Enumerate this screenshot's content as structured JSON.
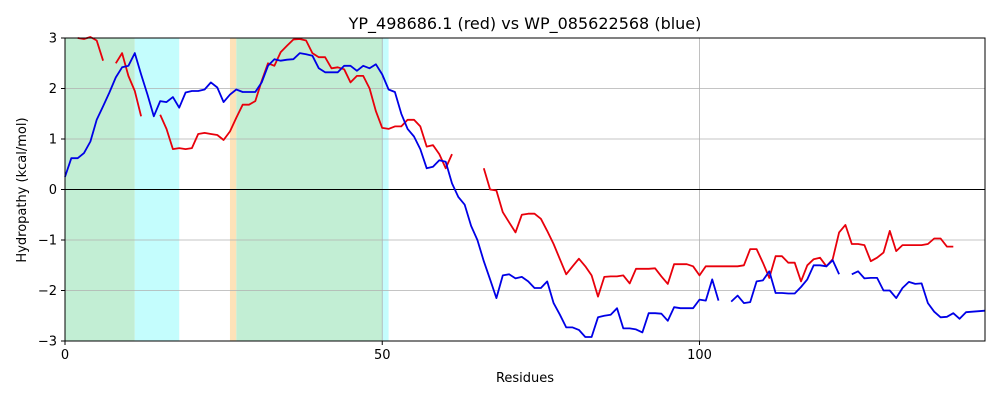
{
  "chart_data": {
    "type": "line",
    "title": "YP_498686.1 (red) vs WP_085622568 (blue)",
    "xlabel": "Residues",
    "ylabel": "Hydropathy (kcal/mol)",
    "xlim": [
      0,
      145
    ],
    "ylim": [
      -3,
      3
    ],
    "xticks": [
      0,
      50,
      100
    ],
    "yticks": [
      -3,
      -2,
      -1,
      0,
      1,
      2,
      3
    ],
    "grid": true,
    "zero_line": true,
    "regions": [
      {
        "start": 0,
        "end": 11,
        "color": "#c2eed4"
      },
      {
        "start": 11,
        "end": 18,
        "color": "#c4fdfd"
      },
      {
        "start": 26,
        "end": 27,
        "color": "#fde2b8"
      },
      {
        "start": 27,
        "end": 50,
        "color": "#c2eed4"
      },
      {
        "start": 50,
        "end": 51,
        "color": "#c4fdfd"
      }
    ],
    "series": [
      {
        "color": "#e8000b",
        "x": [
          0,
          1,
          2,
          3,
          4,
          5,
          6,
          7,
          8,
          9,
          10,
          11,
          12,
          13,
          14,
          15,
          16,
          17,
          18,
          19,
          20,
          21,
          22,
          23,
          24,
          25,
          26,
          27,
          28,
          29,
          30,
          31,
          32,
          33,
          34,
          35,
          36,
          37,
          38,
          39,
          40,
          41,
          42,
          43,
          44,
          45,
          46,
          47,
          48,
          49,
          50,
          51,
          52,
          53,
          54,
          55,
          56,
          57,
          58,
          59,
          60,
          61,
          62,
          63,
          64,
          65,
          66,
          67,
          68,
          69,
          70,
          71,
          72,
          73,
          74,
          75,
          76,
          77,
          78,
          79,
          80,
          81,
          82,
          83,
          84,
          85,
          86,
          87,
          88,
          89,
          90,
          91,
          92,
          93,
          94,
          95,
          96,
          97,
          98,
          99,
          100,
          101,
          102,
          103,
          104,
          105,
          106,
          107,
          108,
          109,
          110,
          111,
          112,
          113,
          114,
          115,
          116,
          117,
          118,
          119,
          120,
          121,
          122,
          123,
          124,
          125,
          126,
          127,
          128,
          129,
          130,
          131,
          132,
          133,
          134,
          135,
          136,
          137,
          138,
          139,
          140
        ],
        "y": [
          null,
          null,
          3.0,
          2.98,
          3.02,
          2.95,
          2.55,
          null,
          2.5,
          2.7,
          2.25,
          1.95,
          1.45,
          null,
          null,
          1.48,
          1.2,
          0.8,
          0.82,
          0.8,
          0.82,
          1.1,
          1.12,
          1.1,
          1.08,
          0.98,
          1.15,
          1.42,
          1.68,
          1.68,
          1.75,
          2.15,
          2.5,
          2.45,
          2.72,
          2.85,
          2.97,
          2.98,
          2.95,
          2.7,
          2.62,
          2.62,
          2.4,
          2.42,
          2.38,
          2.12,
          2.25,
          2.25,
          2.0,
          1.55,
          1.22,
          1.2,
          1.25,
          1.25,
          1.38,
          1.38,
          1.25,
          0.85,
          0.88,
          0.7,
          0.42,
          0.7,
          null,
          null,
          null,
          null,
          0.42,
          0.0,
          -0.02,
          -0.45,
          -0.65,
          -0.85,
          -0.5,
          -0.48,
          -0.48,
          -0.58,
          -0.82,
          -1.08,
          -1.38,
          -1.68,
          -1.52,
          -1.37,
          -1.52,
          -1.7,
          -2.12,
          -1.73,
          -1.72,
          -1.72,
          -1.7,
          -1.86,
          -1.57,
          -1.57,
          -1.57,
          -1.56,
          -1.72,
          -1.87,
          -1.48,
          -1.48,
          -1.48,
          -1.52,
          -1.7,
          -1.52,
          -1.52,
          -1.52,
          -1.52,
          -1.52,
          -1.52,
          -1.5,
          -1.18,
          -1.18,
          -1.45,
          -1.75,
          -1.32,
          -1.32,
          -1.45,
          -1.45,
          -1.82,
          -1.5,
          -1.38,
          -1.35,
          -1.52,
          -1.38,
          -0.85,
          -0.7,
          -1.08,
          -1.08,
          -1.1,
          -1.42,
          -1.35,
          -1.25,
          -0.82,
          -1.22,
          -1.1,
          -1.1,
          -1.1,
          -1.1,
          -1.08,
          -0.97,
          -0.97,
          -1.13,
          -1.13
        ]
      },
      {
        "color": "#0000e6",
        "x": [
          0,
          1,
          2,
          3,
          4,
          5,
          6,
          7,
          8,
          9,
          10,
          11,
          12,
          13,
          14,
          15,
          16,
          17,
          18,
          19,
          20,
          21,
          22,
          23,
          24,
          25,
          26,
          27,
          28,
          29,
          30,
          31,
          32,
          33,
          34,
          35,
          36,
          37,
          38,
          39,
          40,
          41,
          42,
          43,
          44,
          45,
          46,
          47,
          48,
          49,
          50,
          51,
          52,
          53,
          54,
          55,
          56,
          57,
          58,
          59,
          60,
          61,
          62,
          63,
          64,
          65,
          66,
          67,
          68,
          69,
          70,
          71,
          72,
          73,
          74,
          75,
          76,
          77,
          78,
          79,
          80,
          81,
          82,
          83,
          84,
          85,
          86,
          87,
          88,
          89,
          90,
          91,
          92,
          93,
          94,
          95,
          96,
          97,
          98,
          99,
          100,
          101,
          102,
          103,
          104,
          105,
          106,
          107,
          108,
          109,
          110,
          111,
          112,
          113,
          114,
          115,
          116,
          117,
          118,
          119,
          120,
          121,
          122,
          123,
          124,
          125,
          126,
          127,
          128,
          129,
          130,
          131,
          132,
          133,
          134,
          135,
          136,
          137,
          138,
          139,
          140,
          141,
          142,
          143,
          144,
          145
        ],
        "y": [
          0.25,
          0.62,
          0.62,
          0.72,
          0.95,
          1.38,
          1.65,
          1.92,
          2.22,
          2.42,
          2.45,
          2.7,
          2.28,
          1.88,
          1.45,
          1.75,
          1.73,
          1.83,
          1.62,
          1.92,
          1.95,
          1.95,
          1.98,
          2.12,
          2.02,
          1.73,
          1.88,
          1.98,
          1.93,
          1.93,
          1.93,
          2.12,
          2.45,
          2.58,
          2.55,
          2.57,
          2.58,
          2.7,
          2.68,
          2.65,
          2.4,
          2.32,
          2.32,
          2.32,
          2.45,
          2.45,
          2.35,
          2.45,
          2.4,
          2.48,
          2.28,
          1.98,
          1.93,
          1.5,
          1.2,
          1.05,
          0.8,
          0.42,
          0.45,
          0.58,
          0.55,
          0.12,
          -0.15,
          -0.3,
          -0.72,
          -1.0,
          -1.42,
          -1.78,
          -2.15,
          -1.7,
          -1.68,
          -1.76,
          -1.73,
          -1.82,
          -1.95,
          -1.95,
          -1.82,
          -2.25,
          -2.48,
          -2.73,
          -2.73,
          -2.78,
          -2.92,
          -2.92,
          -2.53,
          -2.5,
          -2.48,
          -2.35,
          -2.75,
          -2.75,
          -2.77,
          -2.83,
          -2.45,
          -2.45,
          -2.46,
          -2.6,
          -2.33,
          -2.35,
          -2.35,
          -2.35,
          -2.18,
          -2.2,
          -1.78,
          -2.2,
          null,
          -2.22,
          -2.1,
          -2.25,
          -2.23,
          -1.82,
          -1.8,
          -1.62,
          -2.05,
          -2.05,
          -2.06,
          -2.06,
          -1.93,
          -1.78,
          -1.5,
          -1.5,
          -1.52,
          -1.4,
          -1.68,
          null,
          -1.68,
          -1.62,
          -1.76,
          -1.75,
          -1.75,
          -2.0,
          -2.0,
          -2.15,
          -1.95,
          -1.83,
          -1.87,
          -1.86,
          -2.25,
          -2.42,
          -2.53,
          -2.52,
          -2.45,
          -2.56,
          -2.43,
          -2.42,
          -2.41,
          -2.4
        ]
      }
    ]
  }
}
